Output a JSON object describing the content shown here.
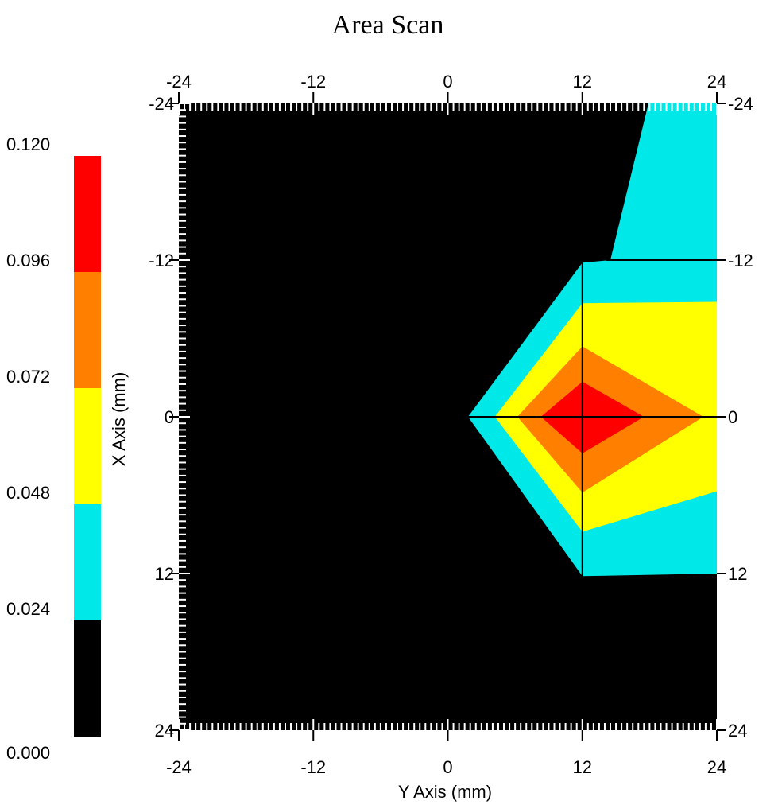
{
  "chart_data": {
    "type": "heatmap",
    "title": "Area Scan",
    "xlabel": "Y Axis (mm)",
    "ylabel": "X Axis (mm)",
    "x_range": [
      -24,
      24
    ],
    "y_range": [
      -24,
      24
    ],
    "y_inverted": true,
    "x_ticks": [
      -24,
      -12,
      0,
      12,
      24
    ],
    "y_ticks": [
      -24,
      -12,
      0,
      12,
      24
    ],
    "x_tick_labels": [
      "-24",
      "-12",
      "0",
      "12",
      "24"
    ],
    "y_tick_labels": [
      "-24",
      "-12",
      "0",
      "12",
      "24"
    ],
    "colorbar": {
      "levels": [
        "0.000",
        "0.024",
        "0.048",
        "0.072",
        "0.096",
        "0.120"
      ],
      "colors": [
        "#000000",
        "#00e8e8",
        "#ffff00",
        "#ff8000",
        "#ff0000"
      ]
    },
    "contours": [
      {
        "level": "0.024-0.048",
        "color": "#00e8e8",
        "polygon": [
          [
            17.9,
            -24
          ],
          [
            24,
            -24
          ],
          [
            24,
            12.0
          ],
          [
            12,
            12.2
          ],
          [
            1.8,
            0
          ],
          [
            12,
            -11.8
          ],
          [
            14.5,
            -12
          ]
        ]
      },
      {
        "level": "0.048-0.072",
        "color": "#ffff00",
        "polygon": [
          [
            4.2,
            0
          ],
          [
            12,
            -8.7
          ],
          [
            24,
            -8.8
          ],
          [
            24,
            5.7
          ],
          [
            12,
            8.8
          ]
        ]
      },
      {
        "level": "0.072-0.096",
        "color": "#ff8000",
        "polygon": [
          [
            6.2,
            0
          ],
          [
            12,
            -5.4
          ],
          [
            22.8,
            0
          ],
          [
            12,
            5.8
          ]
        ]
      },
      {
        "level": "0.096-0.120",
        "color": "#ff0000",
        "polygon": [
          [
            8.3,
            0
          ],
          [
            12,
            -2.7
          ],
          [
            17.5,
            0
          ],
          [
            12,
            2.8
          ]
        ]
      }
    ],
    "crosshair": {
      "x": 12,
      "y": 0,
      "x_from_y": -11.8,
      "x_to_y": 12.2,
      "y_from_x": 1.8,
      "y_to_x": 24
    },
    "grid": false,
    "legend": "colorbar-left"
  }
}
